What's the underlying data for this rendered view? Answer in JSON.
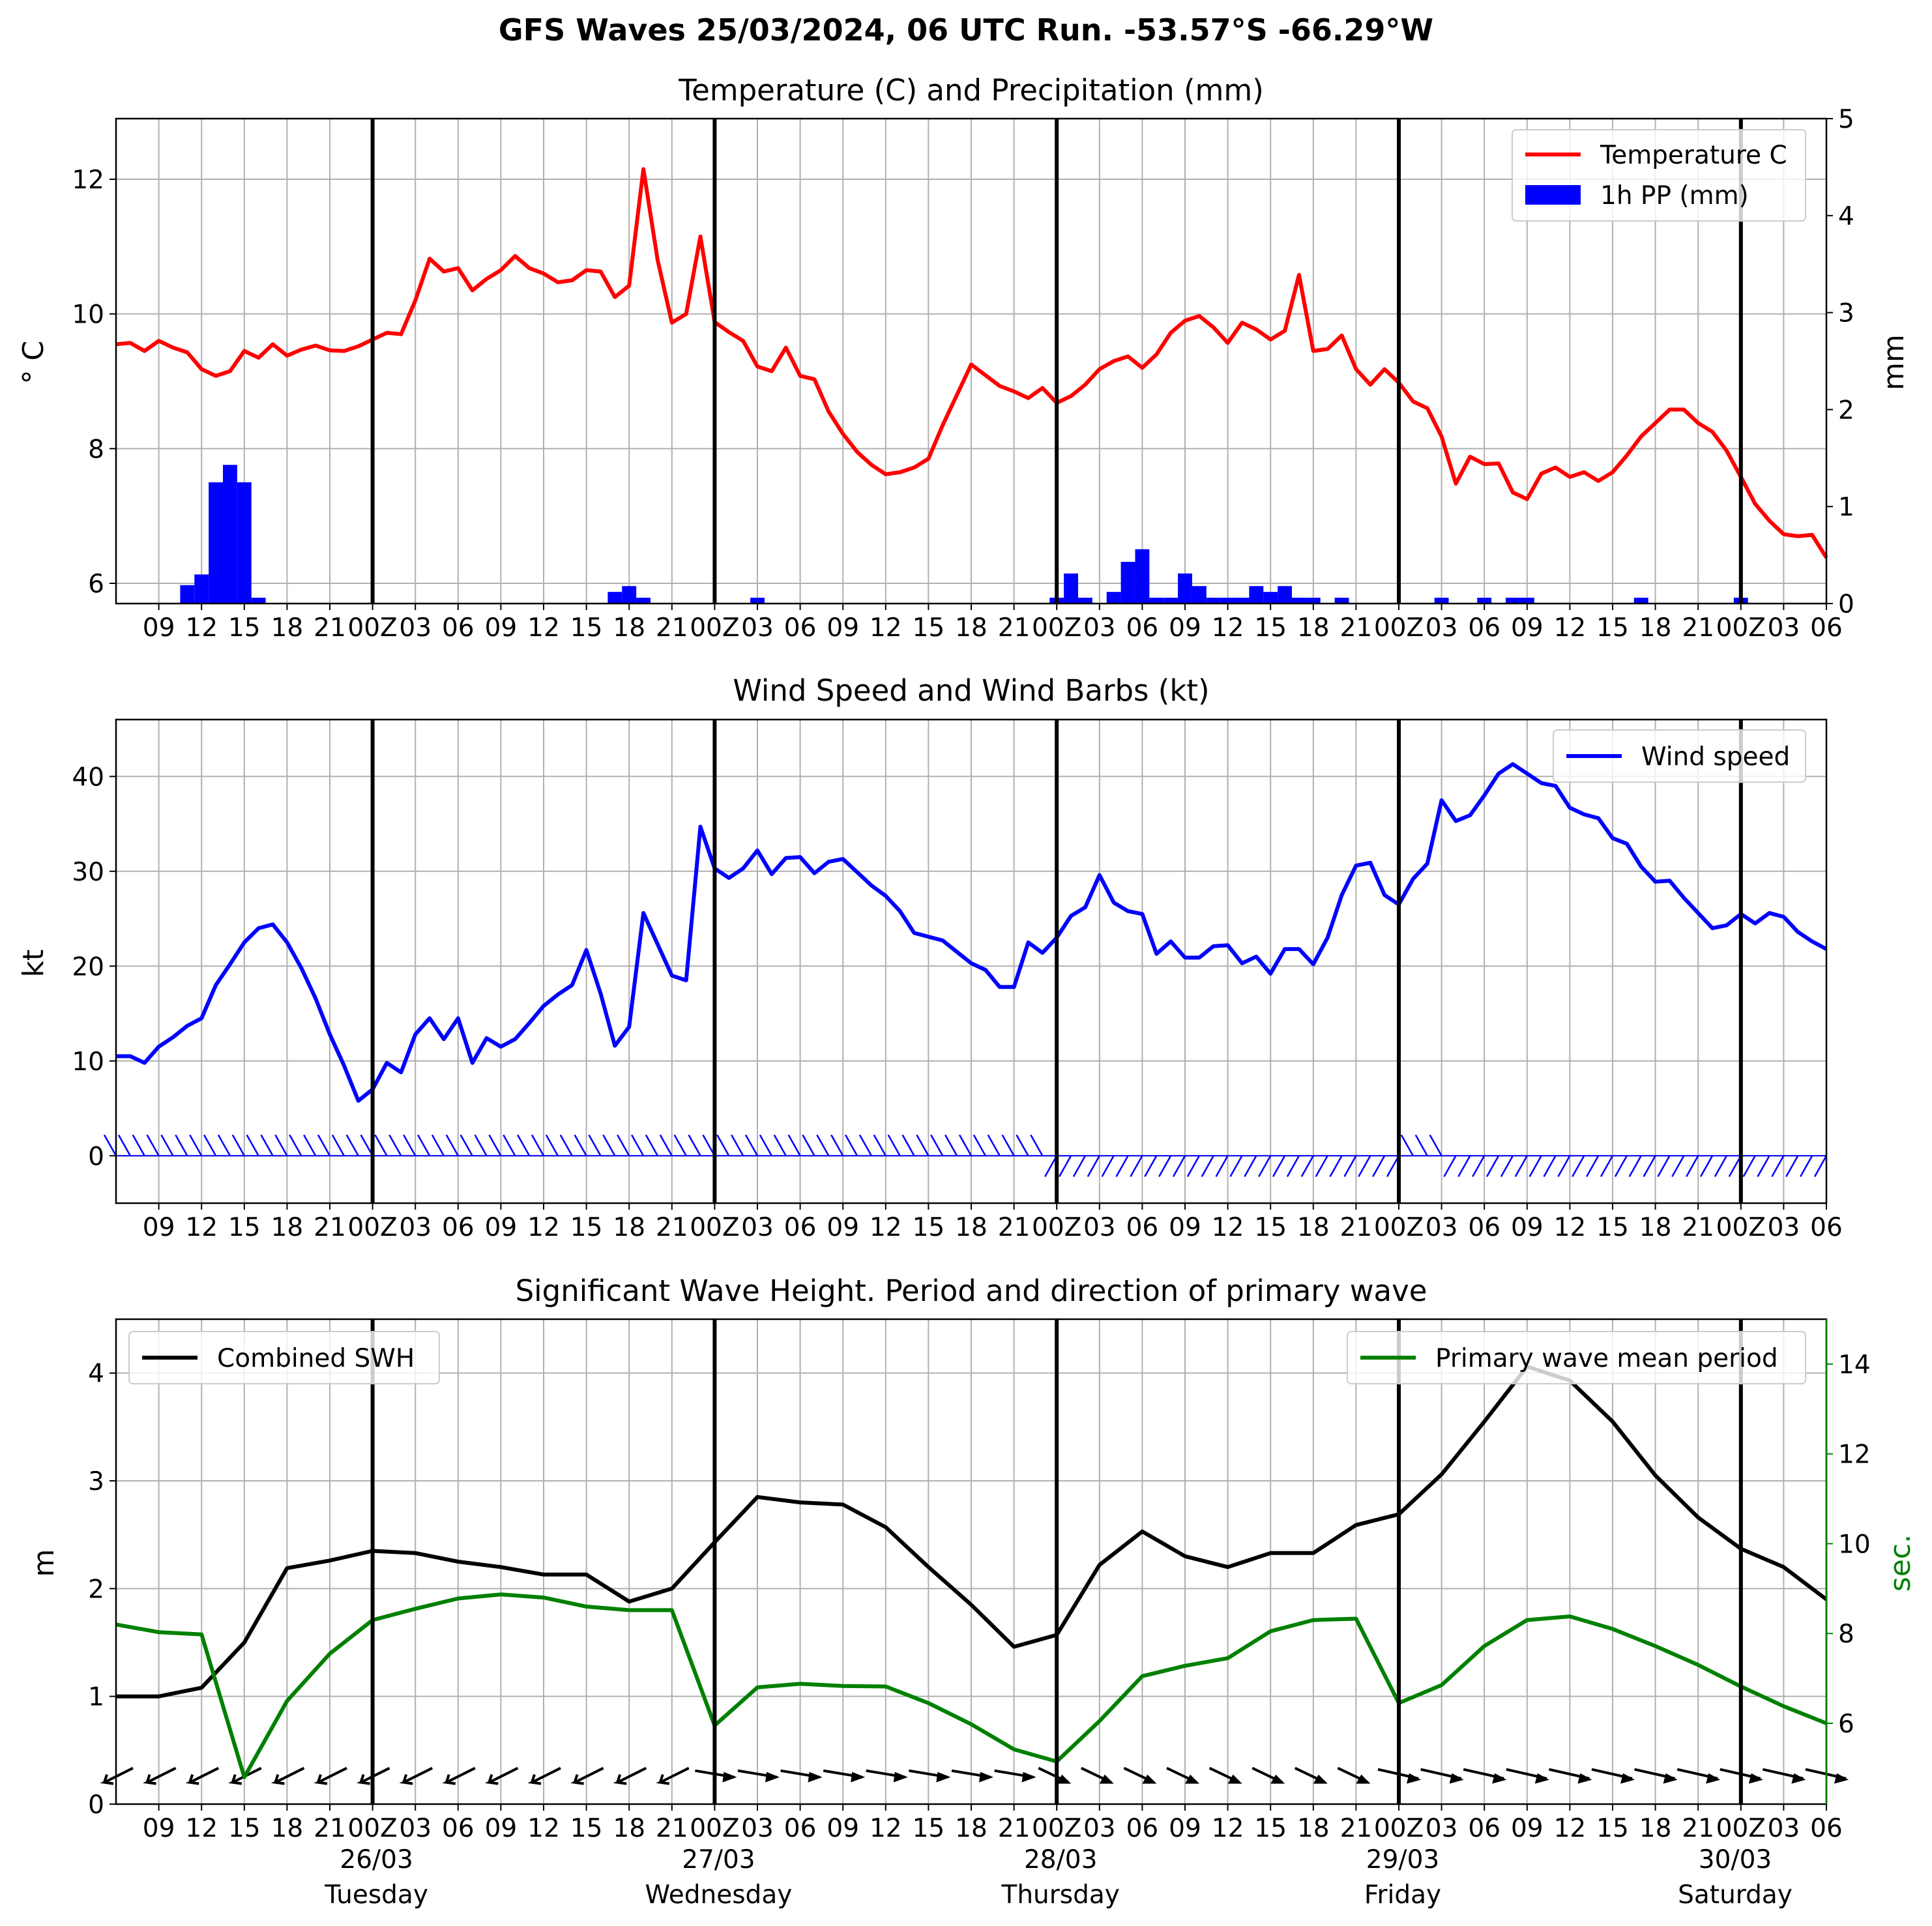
{
  "title": "GFS Waves 25/03/2024, 06 UTC Run. -53.57°S -66.29°W",
  "colors": {
    "temperature": "#ff0000",
    "precip": "#0000ff",
    "wind": "#0000ff",
    "swh": "#000000",
    "period": "#008000",
    "grid": "#b0b0b0"
  },
  "time_axis": {
    "start_hour": 6,
    "end_hour": 126,
    "tick_hours": [
      9,
      12,
      15,
      18,
      21,
      24,
      27,
      30,
      33,
      36,
      39,
      42,
      45,
      48,
      51,
      54,
      57,
      60,
      63,
      66,
      69,
      72,
      75,
      78,
      81,
      84,
      87,
      90,
      93,
      96,
      99,
      102,
      105,
      108,
      111,
      114,
      117,
      120,
      123,
      126
    ],
    "tick_labels": [
      "09",
      "12",
      "15",
      "18",
      "21",
      "00Z",
      "03",
      "06",
      "09",
      "12",
      "15",
      "18",
      "21",
      "00Z",
      "03",
      "06",
      "09",
      "12",
      "15",
      "18",
      "21",
      "00Z",
      "03",
      "06",
      "09",
      "12",
      "15",
      "18",
      "21",
      "00Z",
      "03",
      "06",
      "09",
      "12",
      "15",
      "18",
      "21",
      "00Z",
      "03",
      "06"
    ],
    "day_lines": [
      24,
      48,
      72,
      96,
      120
    ],
    "dates": [
      "26/03",
      "27/03",
      "28/03",
      "29/03",
      "30/03"
    ],
    "weekdays": [
      "Tuesday",
      "Wednesday",
      "Thursday",
      "Friday",
      "Saturday"
    ]
  },
  "chart_data": [
    {
      "type": "line",
      "title": "Temperature (C) and Precipitation (mm)",
      "ylabel": "° C",
      "y2label": "mm",
      "ylim": [
        5.7,
        12.9
      ],
      "y2lim": [
        0,
        5
      ],
      "yticks": [
        6,
        8,
        10,
        12
      ],
      "y2ticks": [
        0,
        1,
        2,
        3,
        4,
        5
      ],
      "grid": true,
      "legend_position": "top-right",
      "legend": [
        "Temperature C",
        "1h PP (mm)"
      ],
      "series": [
        {
          "name": "Temperature C",
          "axis": "left",
          "x": [
            6,
            7,
            8,
            9,
            10,
            11,
            12,
            13,
            14,
            15,
            16,
            17,
            18,
            19,
            20,
            21,
            22,
            23,
            24,
            25,
            26,
            27,
            28,
            29,
            30,
            31,
            32,
            33,
            34,
            35,
            36,
            37,
            38,
            39,
            40,
            41,
            42,
            43,
            44,
            45,
            46,
            47,
            48,
            49,
            50,
            51,
            52,
            53,
            54,
            55,
            56,
            57,
            58,
            59,
            60,
            61,
            62,
            63,
            64,
            66,
            68,
            69,
            70,
            71,
            72,
            73,
            74,
            75,
            76,
            77,
            78,
            79,
            80,
            81,
            82,
            83,
            84,
            85,
            86,
            87,
            88,
            89,
            90,
            91,
            92,
            93,
            94,
            95,
            96,
            97,
            98,
            99,
            100,
            101,
            102,
            103,
            104,
            105,
            106,
            107,
            108,
            109,
            110,
            111,
            112,
            113,
            114,
            115,
            116,
            117,
            118,
            119,
            120,
            121,
            122,
            123,
            124,
            125,
            126
          ],
          "values": [
            9.55,
            9.57,
            9.45,
            9.6,
            9.5,
            9.43,
            9.18,
            9.08,
            9.15,
            9.45,
            9.35,
            9.55,
            9.38,
            9.47,
            9.53,
            9.46,
            9.45,
            9.52,
            9.62,
            9.72,
            9.7,
            10.2,
            10.82,
            10.63,
            10.68,
            10.35,
            10.52,
            10.65,
            10.86,
            10.68,
            10.6,
            10.47,
            10.5,
            10.65,
            10.63,
            10.25,
            10.42,
            12.15,
            10.8,
            9.87,
            10.0,
            11.15,
            9.88,
            9.73,
            9.6,
            9.22,
            9.15,
            9.5,
            9.08,
            9.03,
            8.55,
            8.22,
            7.95,
            7.76,
            7.62,
            7.65,
            7.72,
            7.85,
            8.35,
            9.25,
            8.93,
            8.85,
            8.75,
            8.9,
            8.68,
            8.78,
            8.95,
            9.18,
            9.3,
            9.37,
            9.2,
            9.4,
            9.72,
            9.9,
            9.97,
            9.8,
            9.57,
            9.87,
            9.77,
            9.62,
            9.75,
            10.58,
            9.45,
            9.48,
            9.68,
            9.18,
            8.95,
            9.18,
            8.98,
            8.7,
            8.6,
            8.18,
            7.48,
            7.88,
            7.77,
            7.78,
            7.35,
            7.25,
            7.63,
            7.72,
            7.58,
            7.65,
            7.52,
            7.65,
            7.9,
            8.18,
            8.38,
            8.58,
            8.58,
            8.38,
            8.25,
            7.97,
            7.58,
            7.18,
            6.93,
            6.73,
            6.7,
            6.72,
            6.38
          ]
        },
        {
          "name": "1h PP (mm)",
          "type": "bar",
          "axis": "right",
          "x": [
            11,
            12,
            13,
            14,
            15,
            16,
            41,
            42,
            43,
            51,
            72,
            73,
            74,
            76,
            77,
            78,
            79,
            80,
            81,
            82,
            83,
            84,
            85,
            86,
            87,
            88,
            89,
            90,
            92,
            99,
            102,
            104,
            105,
            113,
            120
          ],
          "values": [
            0.19,
            0.3,
            1.25,
            1.43,
            1.25,
            0.06,
            0.12,
            0.18,
            0.06,
            0.06,
            0.06,
            0.31,
            0.06,
            0.12,
            0.43,
            0.56,
            0.06,
            0.06,
            0.31,
            0.18,
            0.06,
            0.06,
            0.06,
            0.18,
            0.12,
            0.18,
            0.06,
            0.06,
            0.06,
            0.06,
            0.06,
            0.06,
            0.06,
            0.06,
            0.06
          ]
        }
      ]
    },
    {
      "type": "line",
      "title": "Wind Speed and Wind Barbs (kt)",
      "ylabel": "kt",
      "ylim": [
        -5,
        46
      ],
      "yticks": [
        0,
        10,
        20,
        30,
        40
      ],
      "grid": true,
      "legend_position": "top-right",
      "legend": [
        "Wind speed"
      ],
      "series": [
        {
          "name": "Wind speed",
          "x": [
            6,
            7,
            8,
            9,
            10,
            11,
            12,
            13,
            14,
            15,
            16,
            17,
            18,
            19,
            20,
            21,
            22,
            23,
            24,
            25,
            26,
            27,
            28,
            29,
            30,
            31,
            32,
            33,
            34,
            35,
            36,
            37,
            38,
            39,
            40,
            41,
            42,
            43,
            44,
            45,
            46,
            47,
            48,
            49,
            50,
            51,
            52,
            53,
            54,
            55,
            56,
            57,
            58,
            59,
            60,
            61,
            62,
            63,
            64,
            65,
            66,
            67,
            68,
            69,
            70,
            71,
            72,
            73,
            74,
            75,
            76,
            77,
            78,
            79,
            80,
            81,
            82,
            83,
            84,
            85,
            86,
            87,
            88,
            89,
            90,
            91,
            92,
            93,
            94,
            95,
            96,
            97,
            98,
            99,
            100,
            101,
            102,
            103,
            104,
            105,
            106,
            107,
            108,
            109,
            110,
            111,
            112,
            113,
            114,
            115,
            116,
            117,
            118,
            119,
            120,
            121,
            122,
            123,
            124,
            125,
            126
          ],
          "values": [
            10.5,
            10.5,
            9.8,
            11.5,
            12.5,
            13.7,
            14.5,
            18,
            20.2,
            22.5,
            24,
            24.4,
            22.5,
            19.8,
            16.6,
            12.8,
            9.5,
            5.8,
            7,
            9.8,
            8.8,
            12.8,
            14.5,
            12.3,
            14.5,
            9.8,
            12.4,
            11.5,
            12.3,
            14,
            15.8,
            17,
            18,
            21.7,
            17.1,
            11.6,
            13.6,
            25.6,
            22.3,
            19,
            18.5,
            34.7,
            30.3,
            29.3,
            30.3,
            32.2,
            29.7,
            31.4,
            31.5,
            29.8,
            31,
            31.3,
            29.9,
            28.5,
            27.4,
            25.8,
            23.5,
            23.1,
            22.7,
            21.5,
            20.3,
            19.6,
            17.8,
            17.8,
            22.5,
            21.4,
            23,
            25.3,
            26.2,
            29.6,
            26.7,
            25.8,
            25.5,
            21.3,
            22.6,
            20.9,
            20.9,
            22.1,
            22.2,
            20.3,
            21,
            19.2,
            21.8,
            21.8,
            20.2,
            23,
            27.5,
            30.6,
            30.9,
            27.5,
            26.5,
            29.2,
            30.8,
            37.5,
            35.3,
            35.9,
            38,
            40.3,
            41.3,
            40.3,
            39.3,
            39,
            36.7,
            36,
            35.6,
            33.5,
            32.9,
            30.5,
            28.9,
            29,
            27.2,
            25.6,
            24,
            24.3,
            25.5,
            24.5,
            25.6,
            25.2,
            23.6,
            22.6,
            21.8
          ]
        }
      ]
    },
    {
      "type": "line",
      "title": "Significant Wave Height. Period and direction of primary wave",
      "ylabel": "m",
      "y2label": "sec.",
      "ylim": [
        0,
        4.5
      ],
      "y2lim": [
        4.2,
        15
      ],
      "yticks": [
        0,
        1,
        2,
        3,
        4
      ],
      "y2ticks": [
        6,
        8,
        10,
        12,
        14
      ],
      "grid": true,
      "legend": [
        "Combined SWH",
        "Primary wave mean period"
      ],
      "series": [
        {
          "name": "Combined SWH",
          "axis": "left",
          "x": [
            6,
            9,
            12,
            15,
            18,
            21,
            24,
            27,
            30,
            33,
            36,
            39,
            42,
            45,
            48,
            51,
            54,
            57,
            60,
            63,
            66,
            69,
            72,
            75,
            78,
            81,
            84,
            87,
            90,
            93,
            96,
            99,
            102,
            105,
            108,
            111,
            114,
            117,
            120,
            123,
            126
          ],
          "values": [
            1.0,
            1.0,
            1.08,
            1.5,
            2.19,
            2.26,
            2.35,
            2.33,
            2.25,
            2.2,
            2.13,
            2.13,
            1.88,
            2.0,
            2.43,
            2.85,
            2.8,
            2.78,
            2.57,
            2.2,
            1.85,
            1.46,
            1.57,
            2.22,
            2.53,
            2.3,
            2.2,
            2.33,
            2.33,
            2.59,
            2.69,
            3.06,
            3.55,
            4.06,
            3.93,
            3.55,
            3.05,
            2.66,
            2.37,
            2.2,
            1.9
          ]
        },
        {
          "name": "Primary wave mean period",
          "axis": "right",
          "x": [
            6,
            9,
            12,
            15,
            18,
            21,
            24,
            27,
            30,
            33,
            36,
            39,
            42,
            45,
            48,
            51,
            54,
            57,
            60,
            63,
            66,
            69,
            72,
            75,
            78,
            81,
            84,
            87,
            90,
            93,
            96,
            99,
            102,
            105,
            108,
            111,
            114,
            117,
            120,
            123,
            126
          ],
          "values": [
            8.2,
            8.03,
            7.98,
            4.8,
            6.5,
            7.55,
            8.3,
            8.55,
            8.78,
            8.87,
            8.8,
            8.6,
            8.52,
            8.52,
            5.95,
            6.8,
            6.88,
            6.83,
            6.82,
            6.45,
            5.98,
            5.42,
            5.15,
            6.05,
            7.05,
            7.28,
            7.45,
            8.05,
            8.3,
            8.33,
            6.45,
            6.85,
            7.72,
            8.3,
            8.38,
            8.1,
            7.72,
            7.3,
            6.82,
            6.38,
            6.0
          ]
        }
      ]
    }
  ]
}
